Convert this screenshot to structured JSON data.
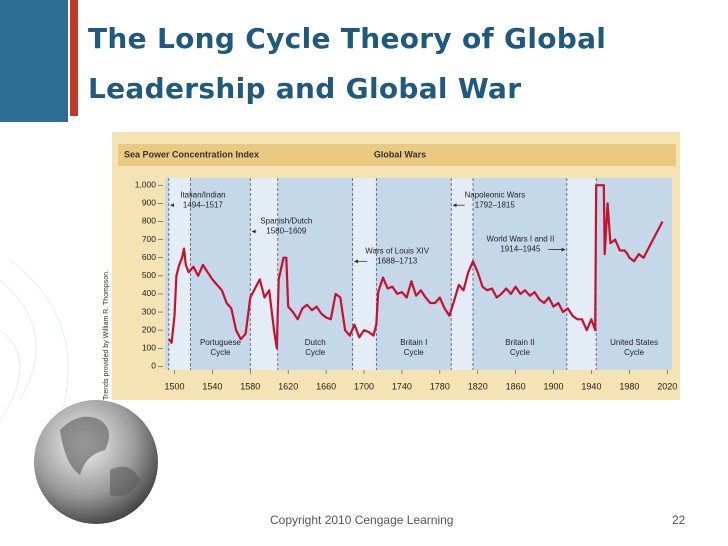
{
  "title": "The Long Cycle Theory of Global Leadership and Global War",
  "footer": "Copyright 2010 Cengage Learning",
  "page_number": "22",
  "chart_data": {
    "type": "line",
    "title": "Sea Power Concentration Index",
    "subtitle": "Global Wars",
    "credit": "Trends provided by William R. Thompson.",
    "color": "#c8102e",
    "xlim": [
      1490,
      2025
    ],
    "xticks": [
      1500,
      1540,
      1580,
      1620,
      1660,
      1700,
      1740,
      1780,
      1820,
      1860,
      1900,
      1940,
      1980,
      2020
    ],
    "ylim": [
      -20,
      1040
    ],
    "yticks": [
      0,
      100,
      200,
      300,
      400,
      500,
      600,
      700,
      800,
      900,
      {
        "value": 1000,
        "label": "1,000"
      }
    ],
    "wars": [
      {
        "name": "Italian/Indian",
        "period": "1494–1517",
        "start": 1494,
        "end": 1517
      },
      {
        "name": "Spanish/Dutch",
        "period": "1580–1609",
        "start": 1580,
        "end": 1609
      },
      {
        "name": "Wars of Louis XIV",
        "period": "1688–1713",
        "start": 1688,
        "end": 1713
      },
      {
        "name": "Napoleonic Wars",
        "period": "1792–1815",
        "start": 1792,
        "end": 1815
      },
      {
        "name": "World Wars I and II",
        "period": "1914–1945",
        "start": 1914,
        "end": 1945
      }
    ],
    "cycles": [
      "Portuguese Cycle",
      "Dutch Cycle",
      "Britain I Cycle",
      "Britain II Cycle",
      "United States Cycle"
    ],
    "x": [
      1494,
      1497,
      1500,
      1502,
      1505,
      1508,
      1510,
      1512,
      1515,
      1520,
      1525,
      1530,
      1535,
      1540,
      1545,
      1550,
      1555,
      1560,
      1565,
      1570,
      1575,
      1580,
      1585,
      1590,
      1595,
      1600,
      1605,
      1608,
      1610,
      1615,
      1618,
      1620,
      1625,
      1630,
      1635,
      1640,
      1645,
      1650,
      1655,
      1660,
      1665,
      1670,
      1675,
      1680,
      1685,
      1690,
      1695,
      1700,
      1705,
      1710,
      1713,
      1715,
      1720,
      1725,
      1730,
      1735,
      1740,
      1745,
      1750,
      1755,
      1760,
      1765,
      1770,
      1775,
      1780,
      1785,
      1790,
      1795,
      1800,
      1805,
      1810,
      1815,
      1820,
      1825,
      1830,
      1835,
      1840,
      1845,
      1850,
      1855,
      1860,
      1865,
      1870,
      1875,
      1880,
      1885,
      1890,
      1895,
      1900,
      1905,
      1910,
      1915,
      1920,
      1925,
      1930,
      1935,
      1940,
      1944,
      1945,
      1950,
      1953,
      1954,
      1957,
      1960,
      1965,
      1970,
      1975,
      1978,
      1980,
      1985,
      1990,
      1995,
      2000,
      2005,
      2010,
      2015
    ],
    "values": [
      150,
      130,
      280,
      500,
      560,
      600,
      650,
      560,
      520,
      550,
      500,
      560,
      520,
      480,
      450,
      420,
      350,
      320,
      200,
      150,
      180,
      380,
      430,
      480,
      380,
      420,
      200,
      100,
      480,
      600,
      600,
      330,
      300,
      260,
      320,
      340,
      310,
      330,
      290,
      270,
      260,
      400,
      380,
      200,
      170,
      230,
      160,
      200,
      190,
      170,
      230,
      410,
      490,
      430,
      440,
      400,
      410,
      380,
      470,
      390,
      420,
      380,
      350,
      350,
      380,
      320,
      280,
      360,
      450,
      420,
      520,
      580,
      520,
      440,
      420,
      430,
      380,
      400,
      430,
      400,
      440,
      400,
      420,
      390,
      410,
      370,
      350,
      380,
      330,
      350,
      300,
      320,
      280,
      260,
      260,
      200,
      260,
      200,
      1000,
      1000,
      1000,
      620,
      900,
      680,
      700,
      640,
      640,
      620,
      600,
      580,
      620,
      600,
      650,
      700,
      750,
      800
    ]
  }
}
